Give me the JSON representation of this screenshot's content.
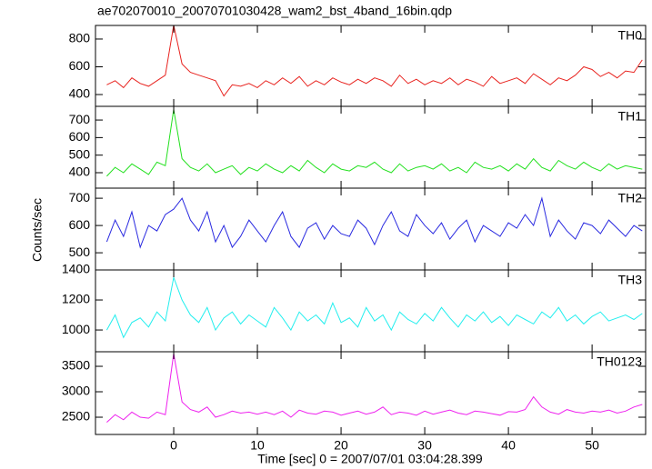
{
  "title": "ae702070010_20070701030428_wam2_bst_4band_16bin.qdp",
  "xlabel": "Time [sec] 0 = 2007/07/01 03:04:28.399",
  "ylabel": "Counts/sec",
  "xlim": [
    -9.35,
    56.4
  ],
  "xticks": [
    0,
    10,
    20,
    30,
    40,
    50
  ],
  "x": [
    -8,
    -7,
    -6,
    -5,
    -4,
    -3,
    -2,
    -1,
    0,
    1,
    2,
    3,
    4,
    5,
    6,
    7,
    8,
    9,
    10,
    11,
    12,
    13,
    14,
    15,
    16,
    17,
    18,
    19,
    20,
    21,
    22,
    23,
    24,
    25,
    26,
    27,
    28,
    29,
    30,
    31,
    32,
    33,
    34,
    35,
    36,
    37,
    38,
    39,
    40,
    41,
    42,
    43,
    44,
    45,
    46,
    47,
    48,
    49,
    50,
    51,
    52,
    53,
    54,
    55,
    56
  ],
  "chart_data": [
    {
      "type": "line",
      "series": [
        {
          "name": "TH0",
          "color": "#e8231f",
          "values": [
            470,
            500,
            450,
            520,
            480,
            460,
            500,
            540,
            900,
            620,
            560,
            540,
            520,
            500,
            390,
            470,
            460,
            480,
            450,
            500,
            470,
            520,
            480,
            530,
            460,
            500,
            470,
            520,
            490,
            470,
            510,
            480,
            520,
            500,
            460,
            540,
            480,
            510,
            470,
            500,
            480,
            520,
            470,
            510,
            490,
            460,
            530,
            480,
            500,
            520,
            480,
            550,
            510,
            470,
            520,
            500,
            540,
            600,
            580,
            530,
            560,
            520,
            570,
            560,
            650
          ]
        }
      ],
      "ylim": [
        315,
        898
      ],
      "yticks": [
        400,
        600,
        800
      ]
    },
    {
      "type": "line",
      "series": [
        {
          "name": "TH1",
          "color": "#22e01e",
          "values": [
            380,
            430,
            400,
            450,
            420,
            390,
            460,
            440,
            760,
            480,
            430,
            410,
            450,
            400,
            420,
            440,
            390,
            430,
            410,
            450,
            420,
            400,
            440,
            410,
            470,
            430,
            400,
            450,
            420,
            410,
            440,
            430,
            460,
            420,
            400,
            450,
            410,
            430,
            440,
            420,
            450,
            410,
            430,
            400,
            460,
            430,
            420,
            440,
            410,
            450,
            420,
            480,
            430,
            410,
            470,
            440,
            420,
            460,
            430,
            410,
            450,
            420,
            440,
            430,
            420
          ]
        }
      ],
      "ylim": [
        312,
        778
      ],
      "yticks": [
        400,
        500,
        600,
        700
      ]
    },
    {
      "type": "line",
      "series": [
        {
          "name": "TH2",
          "color": "#2a2ae0",
          "values": [
            540,
            620,
            560,
            650,
            520,
            600,
            580,
            640,
            660,
            700,
            620,
            580,
            650,
            540,
            600,
            520,
            560,
            620,
            580,
            540,
            600,
            650,
            560,
            520,
            590,
            610,
            550,
            600,
            570,
            560,
            620,
            590,
            530,
            600,
            650,
            580,
            560,
            640,
            600,
            570,
            610,
            550,
            590,
            620,
            540,
            600,
            580,
            560,
            610,
            590,
            640,
            600,
            700,
            560,
            620,
            580,
            550,
            610,
            600,
            570,
            620,
            590,
            560,
            600,
            580
          ]
        }
      ],
      "ylim": [
        437,
        737
      ],
      "yticks": [
        500,
        600,
        700
      ]
    },
    {
      "type": "line",
      "series": [
        {
          "name": "TH3",
          "color": "#22eeee",
          "values": [
            1000,
            1100,
            950,
            1050,
            1080,
            1020,
            1120,
            1060,
            1350,
            1200,
            1100,
            1050,
            1150,
            1000,
            1080,
            1120,
            1040,
            1100,
            1060,
            1020,
            1150,
            1080,
            1000,
            1120,
            1060,
            1100,
            1040,
            1180,
            1050,
            1080,
            1020,
            1150,
            1060,
            1100,
            1000,
            1120,
            1070,
            1040,
            1110,
            1060,
            1150,
            1080,
            1020,
            1100,
            1060,
            1120,
            1050,
            1090,
            1030,
            1100,
            1070,
            1040,
            1120,
            1080,
            1150,
            1060,
            1100,
            1040,
            1090,
            1120,
            1060,
            1080,
            1100,
            1070,
            1110
          ]
        }
      ],
      "ylim": [
        855,
        1400
      ],
      "yticks": [
        1000,
        1200,
        1400
      ]
    },
    {
      "type": "line",
      "series": [
        {
          "name": "TH0123",
          "color": "#ee22ee",
          "values": [
            2400,
            2550,
            2450,
            2600,
            2500,
            2480,
            2600,
            2550,
            3750,
            2800,
            2650,
            2600,
            2700,
            2500,
            2550,
            2620,
            2580,
            2600,
            2560,
            2600,
            2550,
            2620,
            2500,
            2640,
            2580,
            2560,
            2620,
            2600,
            2540,
            2580,
            2620,
            2560,
            2600,
            2700,
            2550,
            2600,
            2580,
            2540,
            2620,
            2560,
            2600,
            2640,
            2580,
            2550,
            2620,
            2600,
            2570,
            2540,
            2610,
            2600,
            2650,
            2900,
            2700,
            2600,
            2560,
            2650,
            2600,
            2580,
            2620,
            2600,
            2640,
            2580,
            2620,
            2700,
            2750
          ]
        }
      ],
      "ylim": [
        2161,
        3786
      ],
      "yticks": [
        2500,
        3000,
        3500
      ]
    }
  ]
}
